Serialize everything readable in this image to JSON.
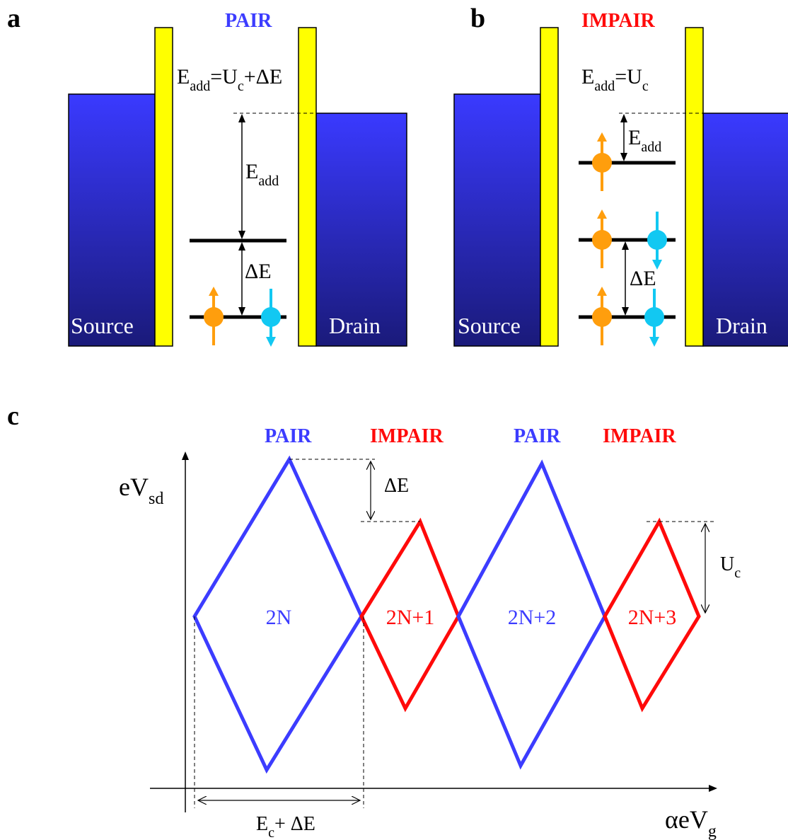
{
  "colors": {
    "even": "#3c3cff",
    "odd": "#ff0a0a",
    "barrier": "#ffff00",
    "reservoir_top": "#3a3aff",
    "reservoir_bottom": "#1a1a7a",
    "spin_up": "#ff9e0d",
    "spin_down": "#12c8f2"
  },
  "panel_a": {
    "letter": "a",
    "parity": "PAIR",
    "eadd_main": "E",
    "eadd_sub": "add",
    "eq_rest_1": "=U",
    "eq_sub_c": "c",
    "eq_rest_2": "+ΔE",
    "arrow_main": "E",
    "arrow_sub": "add",
    "delta": "ΔE",
    "source": "Source",
    "drain": "Drain"
  },
  "panel_b": {
    "letter": "b",
    "parity": "IMPAIR",
    "eadd_main": "E",
    "eadd_sub": "add",
    "eq_rest": "=U",
    "eq_sub_c": "c",
    "arrow_main": "E",
    "arrow_sub": "add",
    "delta": "ΔE",
    "source": "Source",
    "drain": "Drain"
  },
  "panel_c": {
    "letter": "c",
    "parity_labels": [
      "PAIR",
      "IMPAIR",
      "PAIR",
      "IMPAIR"
    ],
    "ylabel_main": "eV",
    "ylabel_sub": "sd",
    "xlabel_main": "αeV",
    "xlabel_sub": "g",
    "diamonds": [
      "2N",
      "2N+1",
      "2N+2",
      "2N+3"
    ],
    "delta": "ΔE",
    "uc_main": "U",
    "uc_sub": "c",
    "period_main": "E",
    "period_sub": "c",
    "period_rest": "+ ΔE"
  }
}
